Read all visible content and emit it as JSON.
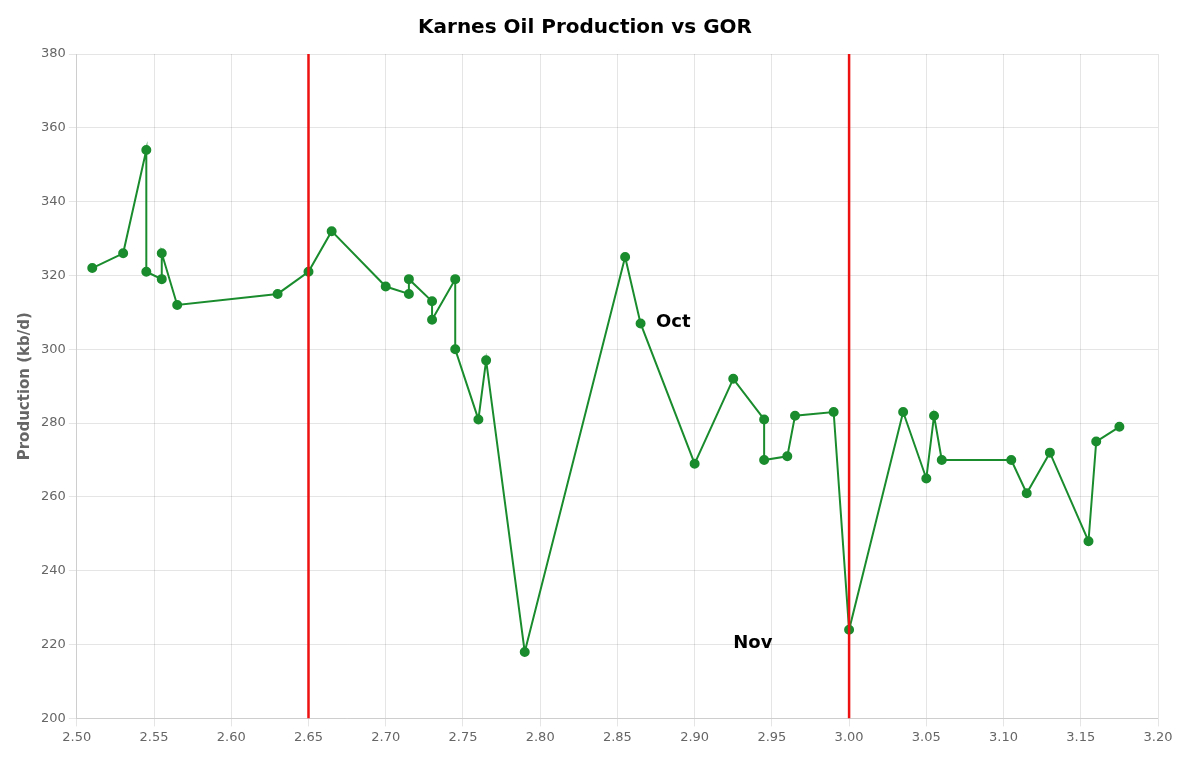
{
  "chart_data": {
    "type": "line",
    "title": "Karnes Oil Production vs GOR",
    "ylabel": "Production (kb/d)",
    "x": [
      2.51,
      2.53,
      2.545,
      2.545,
      2.555,
      2.555,
      2.565,
      2.63,
      2.65,
      2.665,
      2.7,
      2.715,
      2.715,
      2.73,
      2.73,
      2.745,
      2.745,
      2.76,
      2.765,
      2.79,
      2.855,
      2.865,
      2.9,
      2.925,
      2.945,
      2.945,
      2.96,
      2.965,
      2.99,
      3.0,
      3.035,
      3.05,
      3.055,
      3.06,
      3.105,
      3.115,
      3.13,
      3.155,
      3.16,
      3.175
    ],
    "series": [
      {
        "color": "#1a8c2e",
        "marker": "circle",
        "values": [
          322,
          326,
          354,
          321,
          319,
          326,
          312,
          315,
          321,
          332,
          317,
          315,
          319,
          313,
          308,
          319,
          300,
          281,
          297,
          218,
          325,
          307,
          269,
          292,
          281,
          270,
          271,
          282,
          283,
          224,
          283,
          265,
          282,
          270,
          270,
          261,
          272,
          248,
          275,
          279
        ]
      }
    ],
    "vlines": [
      {
        "x": 2.65,
        "color": "#ee1111"
      },
      {
        "x": 3.0,
        "color": "#ee1111"
      }
    ],
    "annotations": [
      {
        "x": 2.875,
        "y": 306,
        "text": "Oct"
      },
      {
        "x": 2.925,
        "y": 219,
        "text": "Nov"
      }
    ],
    "xlim": [
      2.5,
      3.2
    ],
    "ylim": [
      200,
      380
    ],
    "xticks": [
      {
        "value": 2.5,
        "label": "2.50"
      },
      2.55,
      {
        "value": 2.6,
        "label": "2.60"
      },
      2.65,
      {
        "value": 2.7,
        "label": "2.70"
      },
      2.75,
      {
        "value": 2.8,
        "label": "2.80"
      },
      2.85,
      {
        "value": 2.9,
        "label": "2.90"
      },
      2.95,
      {
        "value": 3.0,
        "label": "3.00"
      },
      3.05,
      {
        "value": 3.1,
        "label": "3.10"
      },
      3.15,
      {
        "value": 3.2,
        "label": "3.20"
      }
    ],
    "yticks": [
      200,
      220,
      240,
      260,
      280,
      300,
      320,
      340,
      360,
      380
    ],
    "grid": true
  }
}
